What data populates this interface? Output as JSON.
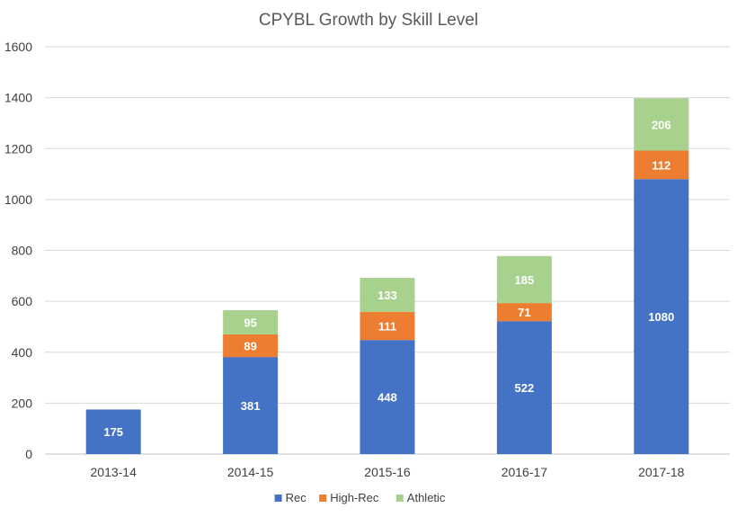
{
  "chart_data": {
    "type": "bar",
    "stacked": true,
    "title": "CPYBL Growth by Skill Level",
    "xlabel": "",
    "ylabel": "",
    "categories": [
      "2013-14",
      "2014-15",
      "2015-16",
      "2016-17",
      "2017-18"
    ],
    "series": [
      {
        "name": "Rec",
        "color": "#4472c4",
        "values": [
          175,
          381,
          448,
          522,
          1080
        ]
      },
      {
        "name": "High-Rec",
        "color": "#ed7d31",
        "values": [
          null,
          89,
          111,
          71,
          112
        ]
      },
      {
        "name": "Athletic",
        "color": "#a9d18e",
        "values": [
          null,
          95,
          133,
          185,
          206
        ]
      }
    ],
    "ylim": [
      0,
      1600
    ],
    "yticks": [
      0,
      200,
      400,
      600,
      800,
      1000,
      1200,
      1400,
      1600
    ],
    "grid": true,
    "legend_position": "bottom"
  }
}
